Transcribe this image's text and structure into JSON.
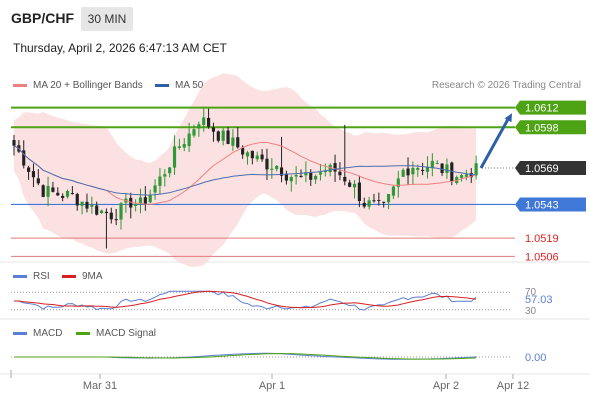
{
  "header": {
    "symbol": "GBP/CHF",
    "timeframe": "30 MIN",
    "timestamp": "Thursday, April 2, 2026 6:47:13 AM CET"
  },
  "legend": {
    "bollinger": "MA 20 + Bollinger Bands",
    "ma50": "MA 50",
    "credit": "Research © 2026 Trading Central"
  },
  "colors": {
    "up": "#2e9a35",
    "down": "#222222",
    "bb_fill": "#fadcdc",
    "ma20": "#f08080",
    "ma50": "#4a6fae",
    "resistance": "#4da314",
    "pivot": "#3f78d6",
    "support": "#e07a7a",
    "arrow": "#2d5fa8",
    "current": "#333333"
  },
  "chart_data": [
    {
      "type": "candlestick",
      "symbol": "GBP/CHF",
      "timeframe": "30 MIN",
      "x_ticks": [
        "Mar 31",
        "Apr 1",
        "Apr 2",
        "Apr 12"
      ],
      "ylim": [
        1.0502,
        1.0621
      ],
      "levels": [
        {
          "value": 1.0612,
          "label": "1.0612",
          "kind": "resistance"
        },
        {
          "value": 1.0598,
          "label": "1.0598",
          "kind": "resistance"
        },
        {
          "value": 1.0569,
          "label": "1.0569",
          "kind": "current"
        },
        {
          "value": 1.0543,
          "label": "1.0543",
          "kind": "pivot"
        },
        {
          "value": 1.0519,
          "label": "1.0519",
          "kind": "support"
        },
        {
          "value": 1.0506,
          "label": "1.0506",
          "kind": "support"
        }
      ],
      "close_path": [
        1.0585,
        1.0575,
        1.0563,
        1.0553,
        1.0551,
        1.055,
        1.0549,
        1.0545,
        1.0541,
        1.0538,
        1.0536,
        1.0539,
        1.0545,
        1.0543,
        1.0551,
        1.0561,
        1.0573,
        1.0585,
        1.0593,
        1.0604,
        1.06,
        1.0593,
        1.0589,
        1.0584,
        1.0579,
        1.0575,
        1.0572,
        1.0571,
        1.0565,
        1.0562,
        1.0561,
        1.0564,
        1.0568,
        1.0567,
        1.0562,
        1.0555,
        1.0544,
        1.0542,
        1.054,
        1.0553,
        1.0567,
        1.0571,
        1.057,
        1.0572,
        1.0568,
        1.0565,
        1.0563,
        1.0567
      ],
      "target_arrow": {
        "from": 1.0569,
        "to": 1.0608
      },
      "series": [
        {
          "name": "MA 20 + Bollinger Bands"
        },
        {
          "name": "MA 50"
        }
      ]
    },
    {
      "type": "line",
      "panel": "RSI",
      "series": [
        {
          "name": "RSI"
        },
        {
          "name": "9MA"
        }
      ],
      "ticks": [
        "70",
        "30"
      ],
      "last_value": "57.03",
      "ylim": [
        25,
        75
      ]
    },
    {
      "type": "line",
      "panel": "MACD",
      "series": [
        {
          "name": "MACD"
        },
        {
          "name": "MACD Signal"
        }
      ],
      "last_value": "0.00"
    }
  ],
  "rsi_labels": {
    "name": "RSI",
    "ma": "9MA"
  },
  "macd_labels": {
    "name": "MACD",
    "signal": "MACD Signal"
  }
}
